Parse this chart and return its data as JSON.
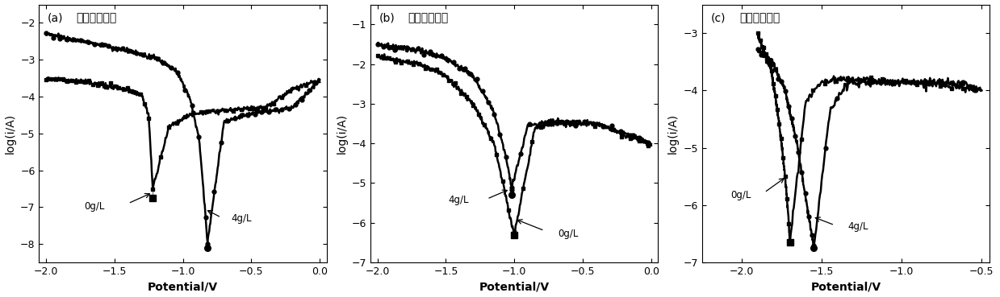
{
  "panels": [
    {
      "label": "(a)",
      "title": "铝表面氧化膜",
      "xlabel": "Potential/V",
      "ylabel": "log(i/A)",
      "xlim": [
        -2.05,
        0.05
      ],
      "ylim": [
        -8.5,
        -1.5
      ],
      "yticks": [
        -8,
        -7,
        -6,
        -5,
        -4,
        -3,
        -2
      ],
      "xticks": [
        -2.0,
        -1.5,
        -1.0,
        -0.5,
        0.0
      ]
    },
    {
      "label": "(b)",
      "title": "馒表面氧化膜",
      "xlabel": "Potential/V",
      "ylabel": "log(i/A)",
      "xlim": [
        -2.05,
        0.05
      ],
      "ylim": [
        -7.0,
        -0.5
      ],
      "yticks": [
        -7,
        -6,
        -5,
        -4,
        -3,
        -2,
        -1
      ],
      "xticks": [
        -2.0,
        -1.5,
        -1.0,
        -0.5,
        0.0
      ]
    },
    {
      "label": "(c)",
      "title": "焊缝处氧化膜",
      "xlabel": "Potential/V",
      "ylabel": "log(i/A)",
      "xlim": [
        -2.25,
        -0.45
      ],
      "ylim": [
        -7.0,
        -2.5
      ],
      "yticks": [
        -7,
        -6,
        -5,
        -4,
        -3
      ],
      "xticks": [
        -2.0,
        -1.5,
        -1.0,
        -0.5
      ]
    }
  ],
  "bg_color": "#ffffff",
  "linewidth": 1.8,
  "markersize": 3.5
}
